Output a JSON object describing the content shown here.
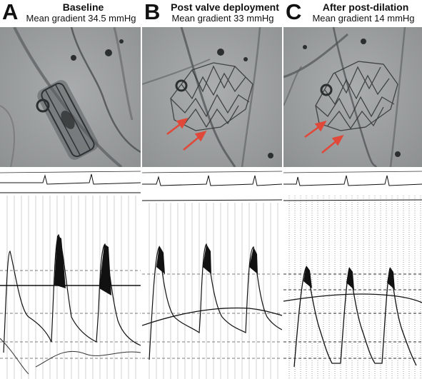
{
  "panels": [
    {
      "letter": "A",
      "title": "Baseline",
      "subtitle": "Mean gradient 34.5 mmHg"
    },
    {
      "letter": "B",
      "title": "Post valve deployment",
      "subtitle": "Mean gradient 33 mmHg"
    },
    {
      "letter": "C",
      "title": "After post-dilation",
      "subtitle": "Mean gradient 14 mmHg"
    }
  ],
  "colors": {
    "fluoro_background": "#9fa2a3",
    "arrow": "#e0483a",
    "trace_background": "#ffffff",
    "trace_line": "#111111"
  }
}
